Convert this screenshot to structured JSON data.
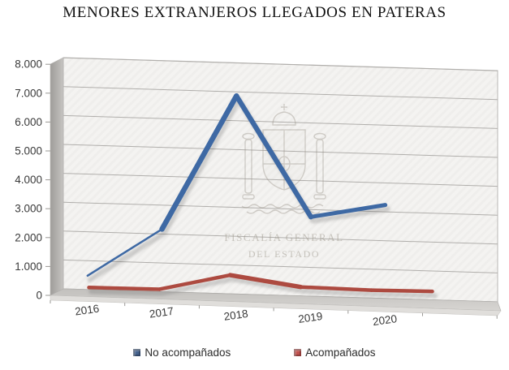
{
  "title": "MENORES EXTRANJEROS LLEGADOS EN PATERAS",
  "watermark": {
    "emblem": "coat-of-arms-spain",
    "line1": "FISCALÍA GENERAL",
    "line2": "DEL ESTADO"
  },
  "chart_data": {
    "type": "line",
    "style": "3d-ribbon",
    "title": "MENORES EXTRANJEROS LLEGADOS EN PATERAS",
    "categories": [
      "2016",
      "2017",
      "2018",
      "2019",
      "2020"
    ],
    "series": [
      {
        "name": "No acompañados",
        "color": "#3e69a4",
        "legend_marker_color": "#44618c",
        "values": [
          500,
          2200,
          6900,
          2800,
          3300
        ]
      },
      {
        "name": "Acompañados",
        "color": "#ad4a40",
        "legend_marker_color": "#c0504d",
        "values": [
          250,
          250,
          800,
          450,
          400
        ]
      }
    ],
    "ylim": [
      0,
      8000
    ],
    "ytick_step": 1000,
    "ytick_labels": [
      "0",
      "1.000",
      "2.000",
      "3.000",
      "4.000",
      "5.000",
      "6.000",
      "7.000",
      "8.000"
    ],
    "grid": true,
    "legend_position": "bottom"
  }
}
